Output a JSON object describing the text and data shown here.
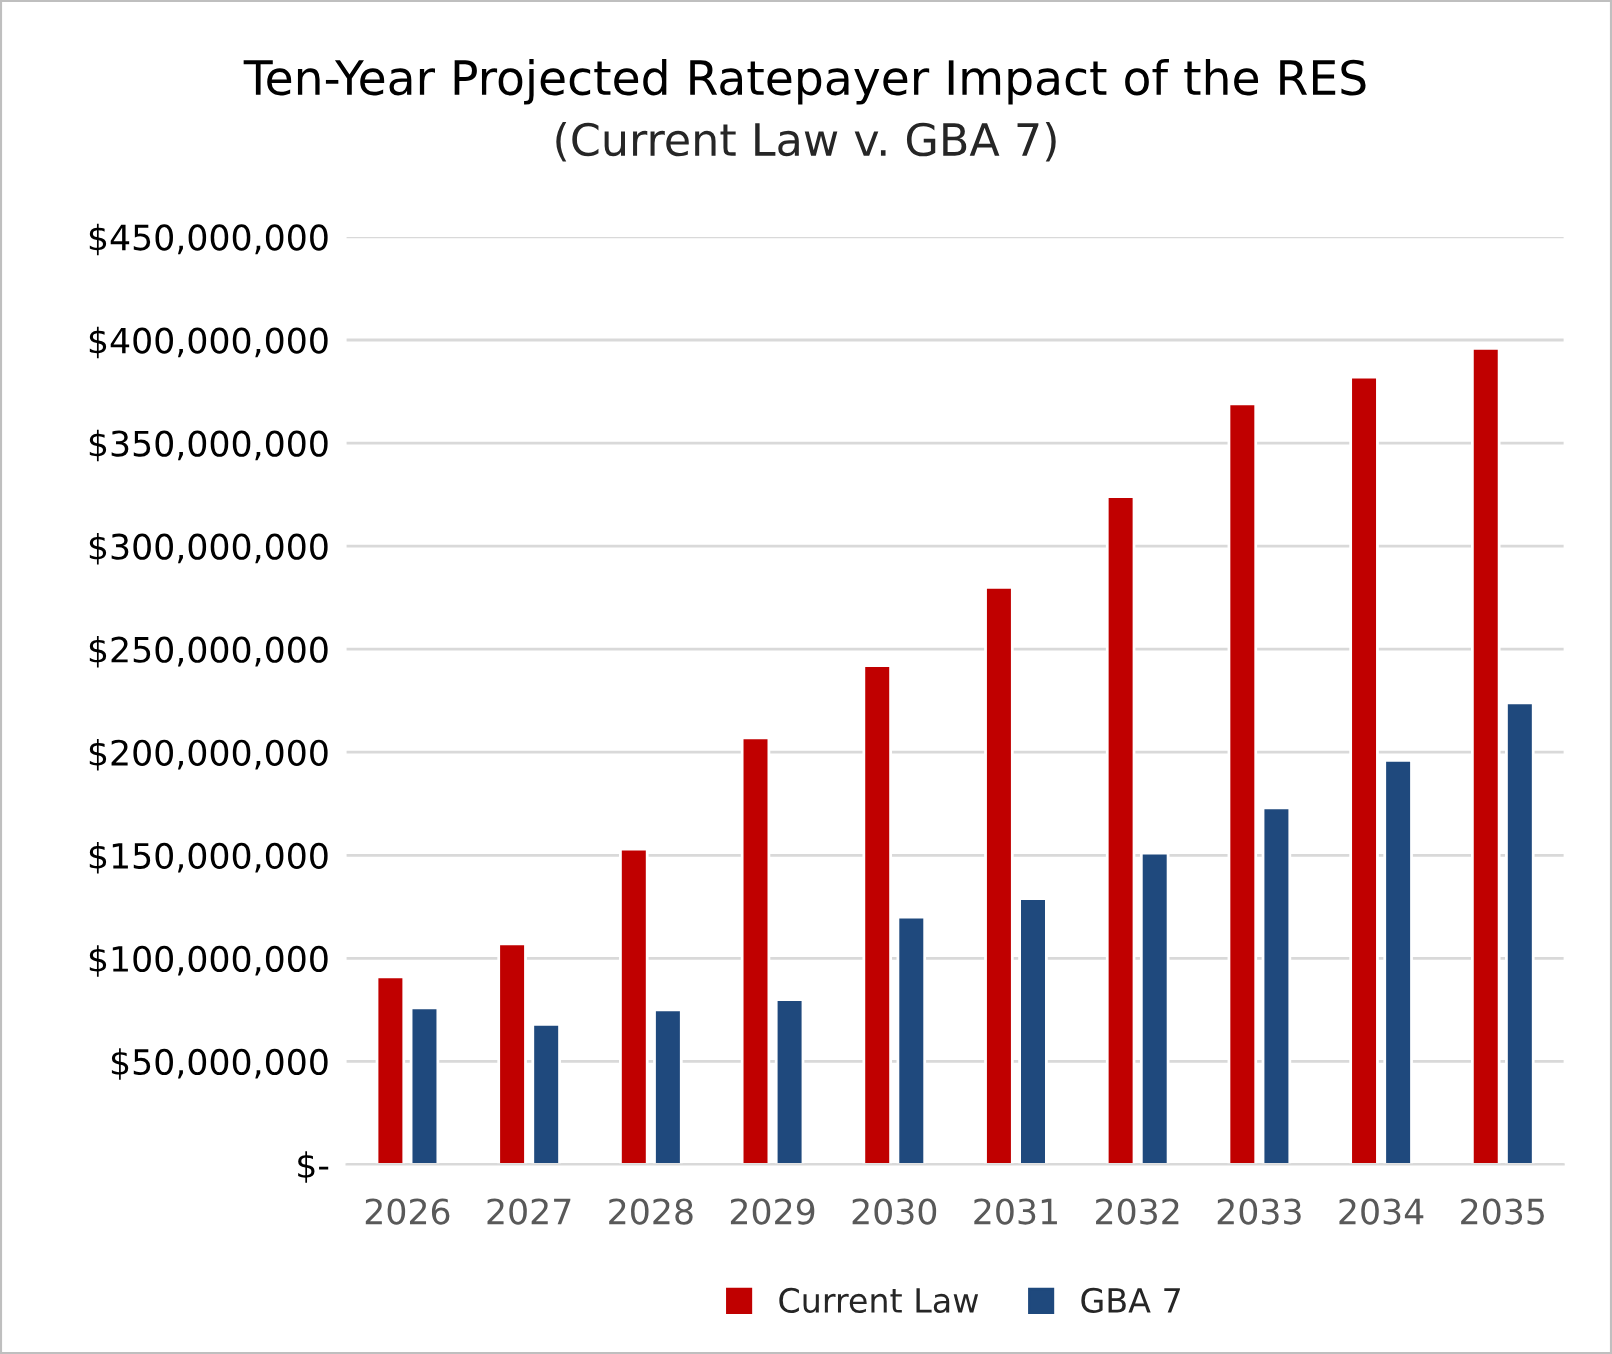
{
  "chart_data": {
    "type": "bar",
    "title": "Ten-Year Projected Ratepayer Impact of the RES",
    "subtitle": "(Current Law v. GBA 7)",
    "categories": [
      "2026",
      "2027",
      "2028",
      "2029",
      "2030",
      "2031",
      "2032",
      "2033",
      "2034",
      "2035"
    ],
    "series": [
      {
        "name": "Current Law",
        "color": "#c00000",
        "values": [
          91000000,
          107000000,
          153000000,
          207000000,
          242000000,
          280000000,
          324000000,
          369000000,
          382000000,
          396000000
        ]
      },
      {
        "name": "GBA 7",
        "color": "#1f497d",
        "values": [
          76000000,
          68000000,
          75000000,
          80000000,
          120000000,
          129000000,
          151000000,
          173000000,
          196000000,
          224000000
        ]
      }
    ],
    "ylim": [
      0,
      450000000
    ],
    "yticks": [
      {
        "value": 0,
        "label": "$-"
      },
      {
        "value": 50000000,
        "label": "$50,000,000"
      },
      {
        "value": 100000000,
        "label": "$100,000,000"
      },
      {
        "value": 150000000,
        "label": "$150,000,000"
      },
      {
        "value": 200000000,
        "label": "$200,000,000"
      },
      {
        "value": 250000000,
        "label": "$250,000,000"
      },
      {
        "value": 300000000,
        "label": "$300,000,000"
      },
      {
        "value": 350000000,
        "label": "$350,000,000"
      },
      {
        "value": 400000000,
        "label": "$400,000,000"
      },
      {
        "value": 450000000,
        "label": "$450,000,000"
      }
    ],
    "grid": "y",
    "legend": "bottom"
  }
}
